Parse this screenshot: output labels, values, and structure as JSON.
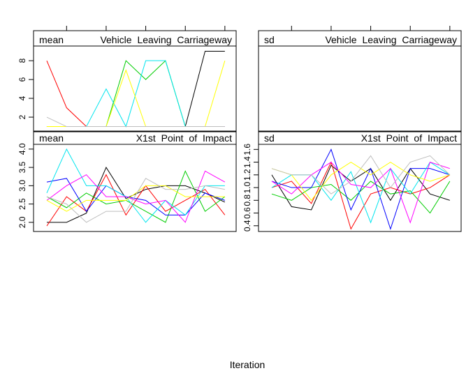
{
  "xlabel": "Iteration",
  "chart_data": [
    {
      "type": "line",
      "stat": "mean",
      "title": "Vehicle Leaving Carriageway",
      "xlim": [
        0.33,
        10.57
      ],
      "xticks": [
        2,
        4,
        6,
        8,
        10
      ],
      "ylim": [
        0.52,
        9.56
      ],
      "yticks": [
        2,
        4,
        6,
        8
      ],
      "series": [
        {
          "color": "#000000",
          "values": [
            1,
            1,
            1,
            1,
            1,
            1,
            1,
            1,
            9,
            9
          ]
        },
        {
          "color": "#ff0000",
          "values": [
            8,
            3,
            1,
            1,
            1,
            1,
            1,
            1,
            1,
            1
          ]
        },
        {
          "color": "#00cd00",
          "values": [
            1,
            1,
            1,
            1,
            8,
            6,
            8,
            1,
            1,
            1
          ]
        },
        {
          "color": "#0000ff",
          "values": [
            1,
            1,
            1,
            1,
            1,
            1,
            1,
            1,
            1,
            1
          ]
        },
        {
          "color": "#00e5ee",
          "values": [
            1,
            1,
            1,
            5,
            1,
            8,
            8,
            1,
            1,
            1
          ]
        },
        {
          "color": "#ff00ff",
          "values": [
            1,
            1,
            1,
            1,
            1,
            1,
            1,
            1,
            1,
            1
          ]
        },
        {
          "color": "#ffff00",
          "values": [
            1,
            1,
            1,
            1,
            7,
            1,
            1,
            1,
            1,
            8
          ]
        },
        {
          "color": "#bebebe",
          "values": [
            2,
            1,
            1,
            1,
            1,
            1,
            1,
            1,
            1,
            1
          ]
        }
      ]
    },
    {
      "type": "line",
      "stat": "sd",
      "title": "Vehicle Leaving Carriageway",
      "xlim": [
        0.33,
        10.57
      ],
      "xticks": [
        2,
        4,
        6,
        8,
        10
      ]
    },
    {
      "type": "line",
      "stat": "mean",
      "title": "X1st Point of Impact",
      "xlim": [
        0.33,
        10.57
      ],
      "ylim": [
        1.75,
        4.13
      ],
      "yticks": [
        {
          "value": 2,
          "label": "2.0"
        },
        2.5,
        {
          "value": 3,
          "label": "3.0"
        },
        3.5,
        {
          "value": 4,
          "label": "4.0"
        }
      ],
      "series": [
        {
          "color": "#000000",
          "values": [
            2.0,
            2.0,
            2.25,
            3.5,
            2.65,
            2.9,
            3.0,
            3.0,
            2.8,
            2.55
          ]
        },
        {
          "color": "#ff0000",
          "values": [
            1.9,
            2.7,
            2.3,
            3.3,
            2.2,
            3.0,
            2.3,
            2.6,
            2.9,
            2.2
          ]
        },
        {
          "color": "#00cd00",
          "values": [
            2.7,
            2.4,
            2.8,
            2.5,
            2.6,
            2.3,
            2.0,
            3.4,
            2.3,
            2.7
          ]
        },
        {
          "color": "#0000ff",
          "values": [
            3.1,
            3.2,
            2.3,
            3.0,
            2.7,
            2.6,
            2.2,
            2.2,
            2.8,
            2.6
          ]
        },
        {
          "color": "#00e5ee",
          "values": [
            2.8,
            4.0,
            3.0,
            3.0,
            2.7,
            2.0,
            2.6,
            2.2,
            3.0,
            3.0
          ]
        },
        {
          "color": "#ff00ff",
          "values": [
            2.6,
            3.0,
            3.3,
            2.7,
            2.7,
            2.5,
            2.6,
            2.0,
            3.4,
            3.1
          ]
        },
        {
          "color": "#ffff00",
          "values": [
            2.6,
            2.3,
            2.6,
            2.6,
            2.6,
            3.0,
            3.0,
            2.7,
            2.7,
            2.7
          ]
        },
        {
          "color": "#bebebe",
          "values": [
            2.7,
            2.5,
            2.0,
            2.3,
            2.3,
            3.2,
            2.9,
            2.9,
            3.0,
            2.9
          ]
        }
      ]
    },
    {
      "type": "line",
      "stat": "sd",
      "title": "X1st Point of Impact",
      "xlim": [
        0.33,
        10.57
      ],
      "ylim": [
        0.31,
        1.68
      ],
      "yticks": [
        0.4,
        0.6,
        0.8,
        {
          "value": 1,
          "label": "1.0"
        },
        1.2,
        1.4,
        1.6
      ],
      "series": [
        {
          "color": "#000000",
          "values": [
            1.2,
            0.7,
            0.65,
            1.35,
            1.1,
            1.3,
            0.8,
            1.3,
            0.9,
            0.8
          ]
        },
        {
          "color": "#ff0000",
          "values": [
            1.0,
            1.1,
            0.75,
            1.4,
            0.35,
            0.9,
            1.0,
            0.9,
            1.0,
            1.2
          ]
        },
        {
          "color": "#00cd00",
          "values": [
            0.9,
            0.8,
            1.0,
            1.05,
            0.8,
            1.1,
            0.9,
            0.95,
            0.6,
            1.1
          ]
        },
        {
          "color": "#0000ff",
          "values": [
            1.1,
            1.0,
            1.0,
            1.6,
            0.65,
            1.3,
            0.35,
            1.3,
            1.3,
            1.2
          ]
        },
        {
          "color": "#00e5ee",
          "values": [
            1.0,
            1.2,
            1.2,
            0.8,
            1.25,
            0.45,
            1.3,
            0.9,
            1.4,
            1.2
          ]
        },
        {
          "color": "#ff00ff",
          "values": [
            1.1,
            0.9,
            1.2,
            1.4,
            1.05,
            1.0,
            1.3,
            0.45,
            1.4,
            1.3
          ]
        },
        {
          "color": "#ffff00",
          "values": [
            1.3,
            1.2,
            0.8,
            1.2,
            1.4,
            1.2,
            1.4,
            1.2,
            1.1,
            1.2
          ]
        },
        {
          "color": "#bebebe",
          "values": [
            1.3,
            1.2,
            1.2,
            0.9,
            1.1,
            1.5,
            1.0,
            1.4,
            1.5,
            1.2
          ]
        }
      ]
    }
  ]
}
